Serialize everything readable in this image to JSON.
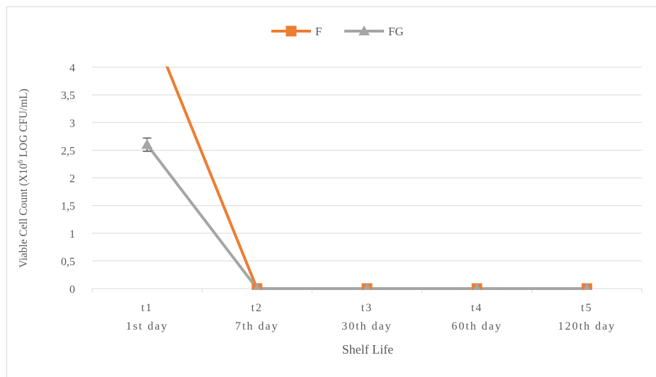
{
  "chart_data": {
    "type": "line",
    "title": "",
    "xlabel": "Shelf Life",
    "ylabel_main": "Viable Cell Count  (X10",
    "ylabel_sup": "6",
    "ylabel_end": " LOG CFU/mL)",
    "categories": [
      {
        "top": "t1",
        "bottom": "1st day"
      },
      {
        "top": "t2",
        "bottom": "7th day"
      },
      {
        "top": "t3",
        "bottom": "30th day"
      },
      {
        "top": "t4",
        "bottom": "60th day"
      },
      {
        "top": "t5",
        "bottom": "120th day"
      }
    ],
    "ylim": [
      0,
      4
    ],
    "yticks": [
      "0",
      "0,5",
      "1",
      "1,5",
      "2",
      "2,5",
      "3",
      "3,5",
      "4"
    ],
    "grid": true,
    "legend_position": "top",
    "series": [
      {
        "name": "F",
        "color": "#ED7D31",
        "marker": "square",
        "values": [
          4.9,
          0,
          0,
          0,
          0
        ],
        "show_first_marker": false
      },
      {
        "name": "FG",
        "color": "#A5A5A5",
        "marker": "triangle",
        "values": [
          2.6,
          0,
          0,
          0,
          0
        ],
        "error": [
          0.12,
          0,
          0,
          0,
          0
        ],
        "show_first_marker": true
      }
    ]
  }
}
